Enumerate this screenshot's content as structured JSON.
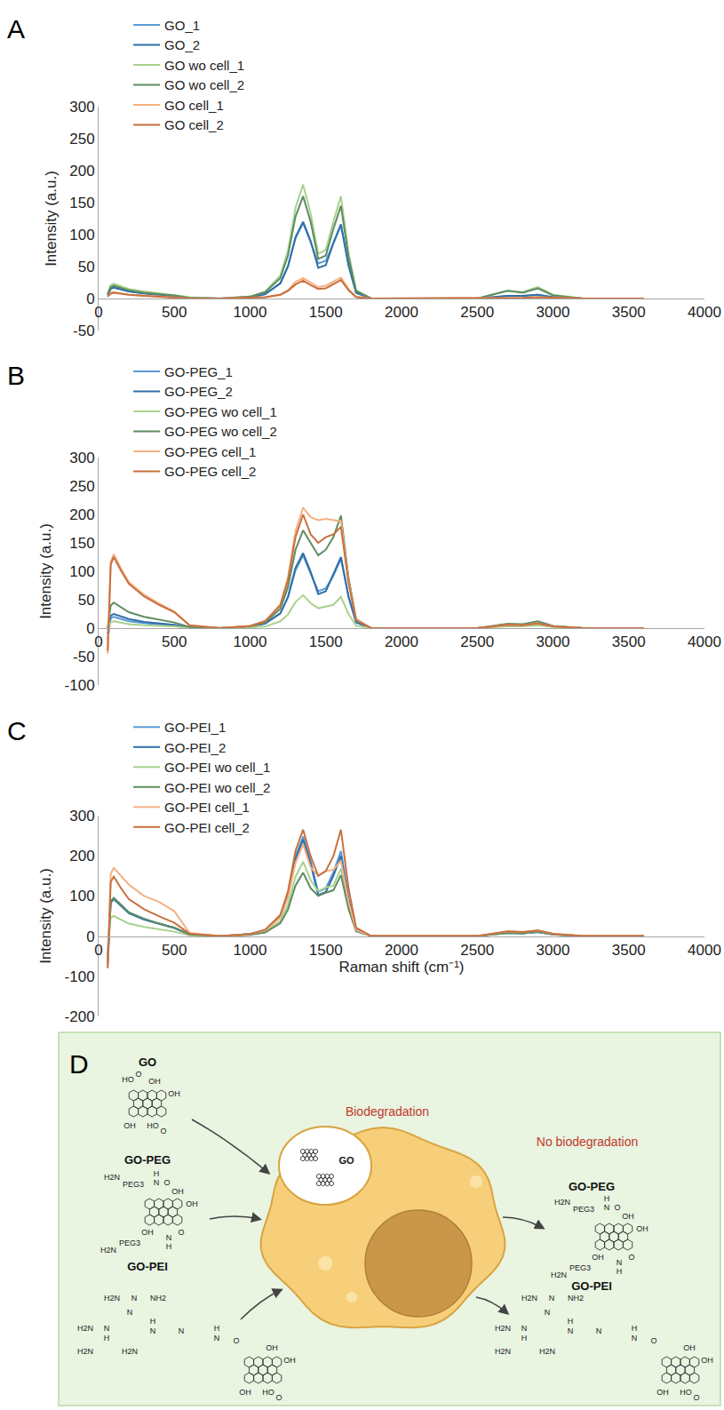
{
  "chart_data": [
    {
      "type": "line",
      "panel": "A",
      "y_label": "Intensity (a.u.)",
      "legend": "top",
      "grid": false,
      "x": [
        60,
        80,
        100,
        150,
        200,
        300,
        400,
        500,
        600,
        800,
        1000,
        1100,
        1200,
        1250,
        1300,
        1350,
        1400,
        1450,
        1500,
        1550,
        1600,
        1650,
        1700,
        1800,
        2000,
        2500,
        2700,
        2800,
        2900,
        3000,
        3200,
        3600
      ],
      "xlim": [
        0,
        4000
      ],
      "xticks": [
        0,
        500,
        1000,
        1500,
        2000,
        2500,
        3000,
        3500,
        4000
      ],
      "ylim": [
        -50,
        300
      ],
      "yticks": [
        -50,
        0,
        50,
        100,
        150,
        200,
        250,
        300
      ],
      "series": [
        {
          "name": "GO_1",
          "color": "#5b9bd5",
          "values": [
            5,
            16,
            18,
            14,
            11,
            8,
            6,
            4,
            1,
            0,
            2,
            7,
            24,
            50,
            94,
            118,
            88,
            55,
            59,
            86,
            115,
            52,
            9,
            0,
            0,
            0,
            4,
            4,
            6,
            2,
            0,
            0
          ]
        },
        {
          "name": "GO_2",
          "color": "#2f6fa8",
          "values": [
            5,
            15,
            17,
            14,
            11,
            8,
            6,
            4,
            1,
            0,
            2,
            7,
            24,
            50,
            96,
            120,
            90,
            48,
            52,
            87,
            116,
            52,
            9,
            0,
            0,
            0,
            4,
            4,
            6,
            2,
            0,
            0
          ]
        },
        {
          "name": "GO wo cell_1",
          "color": "#a9d18e",
          "values": [
            8,
            21,
            23,
            19,
            15,
            11,
            8,
            6,
            2,
            0,
            3,
            11,
            36,
            75,
            142,
            178,
            133,
            70,
            76,
            120,
            160,
            72,
            13,
            0,
            0,
            0,
            12,
            10,
            18,
            6,
            0,
            0
          ]
        },
        {
          "name": "GO wo cell_2",
          "color": "#5e8c61",
          "values": [
            7,
            18,
            20,
            16,
            13,
            9,
            7,
            5,
            1,
            0,
            3,
            10,
            32,
            67,
            128,
            160,
            120,
            62,
            67,
            109,
            145,
            65,
            12,
            0,
            0,
            0,
            12,
            9,
            16,
            5,
            0,
            0
          ]
        },
        {
          "name": "GO cell_1",
          "color": "#f4b183",
          "values": [
            3,
            9,
            10,
            8,
            6,
            5,
            3,
            2,
            0,
            0,
            1,
            2,
            6,
            13,
            26,
            32,
            25,
            18,
            20,
            26,
            33,
            15,
            3,
            0,
            0,
            0,
            1,
            1,
            2,
            1,
            0,
            0
          ]
        },
        {
          "name": "GO cell_2",
          "color": "#c8703f",
          "values": [
            3,
            8,
            9,
            7,
            6,
            4,
            3,
            2,
            0,
            0,
            1,
            2,
            6,
            12,
            22,
            28,
            21,
            15,
            16,
            22,
            29,
            13,
            2,
            0,
            0,
            0,
            1,
            1,
            2,
            1,
            0,
            0
          ]
        }
      ]
    },
    {
      "type": "line",
      "panel": "B",
      "y_label": "Intensity (a.u.)",
      "legend": "top",
      "grid": false,
      "x": [
        60,
        80,
        100,
        150,
        200,
        300,
        400,
        500,
        600,
        800,
        1000,
        1100,
        1200,
        1250,
        1300,
        1350,
        1400,
        1450,
        1500,
        1550,
        1600,
        1650,
        1700,
        1800,
        2000,
        2500,
        2700,
        2800,
        2900,
        3000,
        3200,
        3600
      ],
      "xlim": [
        0,
        4000
      ],
      "xticks": [
        0,
        500,
        1000,
        1500,
        2000,
        2500,
        3000,
        3500,
        4000
      ],
      "ylim": [
        -100,
        300
      ],
      "yticks": [
        -100,
        -50,
        0,
        50,
        100,
        150,
        200,
        250,
        300
      ],
      "series": [
        {
          "name": "GO-PEG_1",
          "color": "#5b9bd5",
          "values": [
            -20,
            18,
            20,
            16,
            12,
            9,
            7,
            4,
            1,
            0,
            3,
            8,
            26,
            54,
            102,
            128,
            96,
            65,
            70,
            92,
            122,
            55,
            10,
            0,
            0,
            0,
            6,
            5,
            8,
            3,
            0,
            0
          ]
        },
        {
          "name": "GO-PEG_2",
          "color": "#2f6fa8",
          "values": [
            -10,
            22,
            25,
            20,
            16,
            11,
            8,
            6,
            1,
            0,
            3,
            8,
            26,
            55,
            106,
            132,
            99,
            60,
            65,
            94,
            125,
            56,
            10,
            0,
            0,
            0,
            6,
            5,
            8,
            3,
            0,
            0
          ]
        },
        {
          "name": "GO-PEG wo cell_1",
          "color": "#a9d18e",
          "values": [
            -5,
            11,
            12,
            10,
            7,
            5,
            4,
            3,
            0,
            0,
            1,
            3,
            12,
            24,
            46,
            58,
            44,
            35,
            38,
            41,
            55,
            25,
            4,
            0,
            0,
            0,
            3,
            3,
            5,
            2,
            0,
            0
          ]
        },
        {
          "name": "GO-PEG wo cell_2",
          "color": "#5e8c61",
          "values": [
            0,
            40,
            45,
            36,
            28,
            20,
            15,
            10,
            2,
            0,
            3,
            10,
            34,
            72,
            138,
            172,
            150,
            128,
            138,
            160,
            198,
            89,
            16,
            0,
            0,
            0,
            8,
            7,
            12,
            4,
            0,
            0
          ]
        },
        {
          "name": "GO-PEG cell_1",
          "color": "#f4b183",
          "values": [
            -45,
            117,
            130,
            104,
            81,
            59,
            43,
            29,
            5,
            0,
            4,
            13,
            42,
            89,
            170,
            212,
            195,
            190,
            192,
            190,
            188,
            85,
            15,
            0,
            0,
            0,
            6,
            5,
            8,
            3,
            0,
            0
          ]
        },
        {
          "name": "GO-PEG cell_2",
          "color": "#c8703f",
          "values": [
            -40,
            112,
            125,
            100,
            78,
            56,
            41,
            28,
            5,
            0,
            4,
            12,
            40,
            84,
            160,
            200,
            165,
            150,
            160,
            165,
            178,
            80,
            14,
            0,
            0,
            0,
            6,
            5,
            8,
            3,
            0,
            0
          ]
        }
      ]
    },
    {
      "type": "line",
      "panel": "C",
      "y_label": "Intensity (a.u.)",
      "x_label": "Raman shift (cm⁻¹)",
      "legend": "top",
      "grid": false,
      "x": [
        60,
        80,
        100,
        150,
        200,
        300,
        400,
        500,
        600,
        800,
        1000,
        1100,
        1200,
        1250,
        1300,
        1350,
        1400,
        1450,
        1500,
        1550,
        1600,
        1650,
        1700,
        1800,
        2000,
        2500,
        2700,
        2800,
        2900,
        3000,
        3200,
        3600
      ],
      "xlim": [
        0,
        4000
      ],
      "xticks": [
        0,
        500,
        1000,
        1500,
        2000,
        2500,
        3000,
        3500,
        4000
      ],
      "ylim": [
        -200,
        300
      ],
      "yticks": [
        -200,
        -100,
        0,
        100,
        200,
        300
      ],
      "series": [
        {
          "name": "GO-PEI_1",
          "color": "#5b9bd5",
          "values": [
            -60,
            86,
            95,
            76,
            59,
            43,
            31,
            21,
            4,
            0,
            5,
            15,
            50,
            104,
            198,
            248,
            186,
            110,
            119,
            159,
            212,
            95,
            17,
            0,
            0,
            0,
            8,
            7,
            10,
            4,
            0,
            0
          ]
        },
        {
          "name": "GO-PEI_2",
          "color": "#2f6fa8",
          "values": [
            -70,
            83,
            92,
            74,
            57,
            41,
            30,
            20,
            4,
            0,
            5,
            14,
            48,
            101,
            192,
            240,
            180,
            102,
            110,
            150,
            200,
            90,
            16,
            0,
            0,
            0,
            8,
            7,
            10,
            4,
            0,
            0
          ]
        },
        {
          "name": "GO-PEI wo cell_1",
          "color": "#a9d18e",
          "values": [
            -30,
            45,
            50,
            40,
            31,
            23,
            17,
            11,
            2,
            0,
            4,
            11,
            37,
            78,
            148,
            185,
            139,
            112,
            121,
            126,
            168,
            76,
            13,
            0,
            0,
            0,
            8,
            7,
            12,
            4,
            0,
            0
          ]
        },
        {
          "name": "GO-PEI wo cell_2",
          "color": "#5e8c61",
          "values": [
            -50,
            86,
            95,
            76,
            59,
            43,
            31,
            21,
            4,
            0,
            3,
            9,
            32,
            66,
            126,
            158,
            119,
            100,
            108,
            114,
            152,
            68,
            12,
            0,
            0,
            0,
            8,
            7,
            12,
            4,
            0,
            0
          ]
        },
        {
          "name": "GO-PEI cell_1",
          "color": "#f4b183",
          "values": [
            -75,
            155,
            170,
            150,
            128,
            100,
            85,
            62,
            8,
            0,
            5,
            14,
            46,
            96,
            182,
            228,
            171,
            150,
            162,
            165,
            188,
            85,
            15,
            0,
            0,
            0,
            12,
            10,
            14,
            6,
            0,
            0
          ]
        },
        {
          "name": "GO-PEI cell_2",
          "color": "#c8703f",
          "values": [
            -80,
            135,
            148,
            118,
            92,
            67,
            49,
            33,
            6,
            0,
            5,
            16,
            53,
            111,
            212,
            265,
            199,
            150,
            162,
            199,
            265,
            119,
            21,
            0,
            0,
            0,
            12,
            10,
            14,
            6,
            0,
            0
          ]
        }
      ]
    }
  ],
  "panel_d": {
    "letter": "D",
    "process_label": "Biodegradation",
    "outcome_label": "No biodegradation",
    "vesicle_label": "GO",
    "inputs": [
      {
        "name": "GO",
        "atoms": [
          "HO",
          "O",
          "OH",
          "OH",
          "OH",
          "HO",
          "O"
        ]
      },
      {
        "name": "GO-PEG",
        "atoms": [
          "H2N",
          "PEG3",
          "H",
          "N",
          "O",
          "OH",
          "OH",
          "OH",
          "H2N",
          "PEG3",
          "N",
          "H",
          "O"
        ]
      },
      {
        "name": "GO-PEI",
        "atoms": [
          "H2N",
          "N",
          "NH2",
          "N",
          "H2N",
          "N",
          "H",
          "H",
          "N",
          "N",
          "H2N",
          "H2N",
          "H",
          "N",
          "O",
          "OH",
          "OH",
          "OH",
          "HO",
          "O"
        ]
      }
    ],
    "outputs": [
      {
        "name": "GO-PEG",
        "atoms": [
          "H2N",
          "PEG3",
          "H",
          "N",
          "O",
          "OH",
          "OH",
          "OH",
          "H2N",
          "PEG3",
          "N",
          "H",
          "O"
        ]
      },
      {
        "name": "GO-PEI",
        "atoms": [
          "H2N",
          "N",
          "NH2",
          "N",
          "H2N",
          "N",
          "H",
          "H",
          "N",
          "N",
          "H2N",
          "H2N",
          "H",
          "N",
          "O",
          "OH",
          "OH",
          "OH",
          "HO",
          "O"
        ]
      }
    ]
  }
}
